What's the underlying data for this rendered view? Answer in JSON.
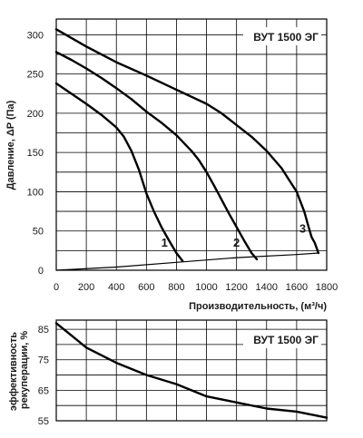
{
  "chart_data": [
    {
      "type": "line",
      "title": "ВУТ 1500 ЭГ",
      "xlabel": "Производительность, (м³/ч)",
      "ylabel": "Давление, ΔP (Па)",
      "xlim": [
        0,
        1800
      ],
      "ylim": [
        0,
        320
      ],
      "x_ticks": [
        "0",
        "200",
        "400",
        "600",
        "800",
        "1000",
        "1200",
        "1400",
        "1600",
        "1800"
      ],
      "y_ticks": [
        "0",
        "50",
        "100",
        "150",
        "200",
        "250",
        "300"
      ],
      "grid": true,
      "series": [
        {
          "name": "1",
          "x": [
            0,
            100,
            200,
            300,
            400,
            450,
            500,
            550,
            600,
            650,
            700,
            750,
            800,
            840
          ],
          "y": [
            238,
            225,
            212,
            198,
            182,
            170,
            152,
            128,
            98,
            75,
            55,
            38,
            22,
            12
          ]
        },
        {
          "name": "2",
          "x": [
            0,
            100,
            200,
            300,
            400,
            500,
            600,
            700,
            800,
            900,
            950,
            1000,
            1050,
            1100,
            1150,
            1200,
            1250,
            1300,
            1335
          ],
          "y": [
            278,
            268,
            257,
            245,
            232,
            218,
            202,
            188,
            172,
            152,
            140,
            125,
            108,
            90,
            72,
            55,
            38,
            22,
            14
          ]
        },
        {
          "name": "3",
          "x": [
            0,
            200,
            400,
            600,
            800,
            1000,
            1100,
            1200,
            1300,
            1400,
            1500,
            1550,
            1600,
            1650,
            1680,
            1700,
            1720,
            1745
          ],
          "y": [
            307,
            285,
            265,
            248,
            230,
            212,
            200,
            185,
            170,
            152,
            130,
            115,
            100,
            75,
            55,
            42,
            35,
            22
          ]
        },
        {
          "name": "",
          "x": [
            0,
            400,
            800,
            1200,
            1600,
            1745
          ],
          "y": [
            0,
            4,
            10,
            16,
            20,
            22
          ]
        }
      ],
      "curve_labels": [
        {
          "text": "1",
          "x": 720,
          "y": 30
        },
        {
          "text": "2",
          "x": 1200,
          "y": 30
        },
        {
          "text": "3",
          "x": 1640,
          "y": 48
        }
      ]
    },
    {
      "type": "line",
      "title": "ВУТ 1500 ЭГ",
      "xlabel": "",
      "ylabel": "эффективность рекуперации, %",
      "xlim": [
        0,
        1800
      ],
      "ylim": [
        55,
        88
      ],
      "y_ticks": [
        "55",
        "65",
        "75",
        "85"
      ],
      "grid": true,
      "series": [
        {
          "name": "",
          "x": [
            0,
            100,
            200,
            400,
            600,
            800,
            1000,
            1200,
            1400,
            1600,
            1800
          ],
          "y": [
            87,
            83,
            79,
            74,
            70,
            67,
            63,
            61,
            59,
            58,
            56
          ]
        }
      ]
    }
  ]
}
